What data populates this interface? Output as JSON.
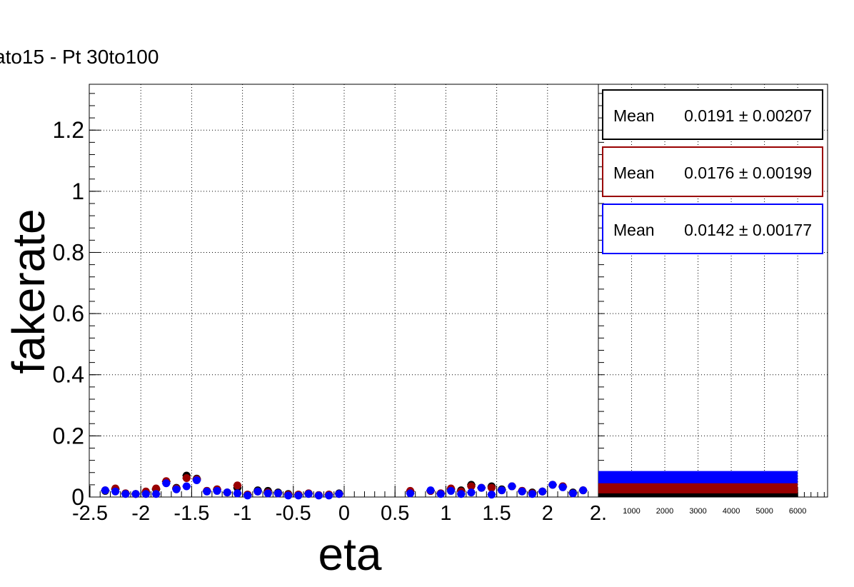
{
  "title": "ato15 - Pt 30to100",
  "chart_data": [
    {
      "type": "scatter",
      "xlabel": "eta",
      "ylabel": "fakerate",
      "xlim": [
        -2.5,
        2.5
      ],
      "ylim": [
        0,
        1.35
      ],
      "x_ticks": [
        "-2.5",
        "-2",
        "-1.5",
        "-1",
        "-0.5",
        "0",
        "0.5",
        "1",
        "1.5",
        "2",
        "2."
      ],
      "y_ticks": [
        "0",
        "0.2",
        "0.4",
        "0.6",
        "0.8",
        "1",
        "1.2"
      ],
      "grid": true,
      "series": [
        {
          "color": "#000000",
          "x": [
            -2.35,
            -2.25,
            -2.15,
            -2.05,
            -1.95,
            -1.85,
            -1.75,
            -1.65,
            -1.55,
            -1.45,
            -1.35,
            -1.25,
            -1.15,
            -1.05,
            -0.95,
            -0.85,
            -0.75,
            -0.65,
            -0.55,
            -0.45,
            -0.35,
            -0.25,
            -0.15,
            -0.05,
            0.65,
            0.85,
            0.95,
            1.05,
            1.15,
            1.25,
            1.35,
            1.45,
            1.55,
            1.65,
            1.75,
            1.85,
            1.95,
            2.05,
            2.15,
            2.25,
            2.35
          ],
          "y": [
            0.02,
            0.025,
            0.012,
            0.01,
            0.015,
            0.025,
            0.05,
            0.03,
            0.07,
            0.06,
            0.02,
            0.025,
            0.015,
            0.03,
            0.008,
            0.022,
            0.02,
            0.015,
            0.01,
            0.008,
            0.012,
            0.006,
            0.008,
            0.012,
            0.018,
            0.02,
            0.012,
            0.025,
            0.022,
            0.04,
            0.03,
            0.035,
            0.025,
            0.035,
            0.02,
            0.015,
            0.018,
            0.04,
            0.035,
            0.015,
            0.022
          ]
        },
        {
          "color": "#990000",
          "x": [
            -2.35,
            -2.25,
            -2.15,
            -2.05,
            -1.95,
            -1.85,
            -1.75,
            -1.65,
            -1.55,
            -1.45,
            -1.35,
            -1.25,
            -1.15,
            -1.05,
            -0.95,
            -0.85,
            -0.75,
            -0.65,
            -0.55,
            -0.45,
            -0.35,
            -0.25,
            -0.15,
            -0.05,
            0.65,
            0.85,
            0.95,
            1.05,
            1.15,
            1.25,
            1.35,
            1.45,
            1.55,
            1.65,
            1.75,
            1.85,
            1.95,
            2.05,
            2.15,
            2.25,
            2.35
          ],
          "y": [
            0.022,
            0.028,
            0.012,
            0.01,
            0.018,
            0.028,
            0.052,
            0.028,
            0.062,
            0.058,
            0.02,
            0.025,
            0.015,
            0.038,
            0.008,
            0.018,
            0.015,
            0.012,
            0.008,
            0.008,
            0.012,
            0.006,
            0.008,
            0.01,
            0.02,
            0.02,
            0.012,
            0.028,
            0.018,
            0.035,
            0.03,
            0.03,
            0.022,
            0.035,
            0.02,
            0.012,
            0.018,
            0.04,
            0.035,
            0.012,
            0.022
          ]
        },
        {
          "color": "#0000ff",
          "x": [
            -2.35,
            -2.25,
            -2.15,
            -2.05,
            -1.95,
            -1.85,
            -1.75,
            -1.65,
            -1.55,
            -1.45,
            -1.35,
            -1.25,
            -1.15,
            -1.05,
            -0.95,
            -0.85,
            -0.75,
            -0.65,
            -0.55,
            -0.45,
            -0.35,
            -0.25,
            -0.15,
            -0.05,
            0.65,
            0.85,
            0.95,
            1.05,
            1.15,
            1.25,
            1.35,
            1.45,
            1.55,
            1.65,
            1.75,
            1.85,
            1.95,
            2.05,
            2.15,
            2.25,
            2.35
          ],
          "y": [
            0.022,
            0.018,
            0.01,
            0.01,
            0.01,
            0.01,
            0.045,
            0.025,
            0.035,
            0.055,
            0.018,
            0.02,
            0.015,
            0.012,
            0.005,
            0.018,
            0.012,
            0.012,
            0.005,
            0.005,
            0.01,
            0.005,
            0.005,
            0.01,
            0.012,
            0.022,
            0.01,
            0.02,
            0.01,
            0.015,
            0.03,
            0.008,
            0.022,
            0.035,
            0.018,
            0.01,
            0.018,
            0.04,
            0.032,
            0.012,
            0.022
          ]
        }
      ]
    },
    {
      "type": "bar",
      "orientation": "horizontal",
      "x_ticks": [
        "1000",
        "2000",
        "3000",
        "4000",
        "5000",
        "6000"
      ],
      "xlim": [
        0,
        6900
      ],
      "ylim": [
        0,
        1.35
      ],
      "grid": true,
      "series": [
        {
          "color": "#000000",
          "value": 6000,
          "y_low": 0.0,
          "y_high": 0.05
        },
        {
          "color": "#990000",
          "value": 6000,
          "y_low": 0.012,
          "y_high": 0.068
        },
        {
          "color": "#0000ff",
          "value": 6000,
          "y_low": 0.045,
          "y_high": 0.085
        }
      ],
      "stats": [
        {
          "color": "#000000",
          "label": "Mean",
          "value": "0.0191 ± 0.00207"
        },
        {
          "color": "#990000",
          "label": "Mean",
          "value": "0.0176 ± 0.00199"
        },
        {
          "color": "#0000ff",
          "label": "Mean",
          "value": "0.0142 ± 0.00177"
        }
      ]
    }
  ]
}
